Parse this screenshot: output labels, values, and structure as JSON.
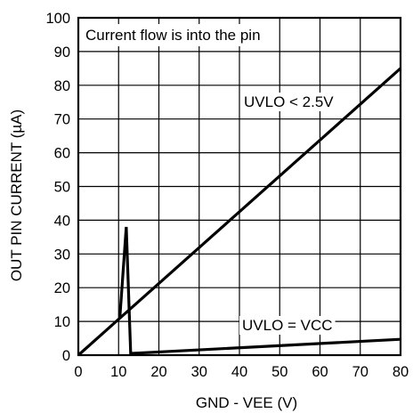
{
  "chart_data": {
    "type": "line",
    "xlabel": "GND - VEE (V)",
    "ylabel": "OUT PIN CURRENT (µA)",
    "xlim": [
      0,
      80
    ],
    "ylim": [
      0,
      100
    ],
    "x_ticks": [
      0,
      10,
      20,
      30,
      40,
      50,
      60,
      70,
      80
    ],
    "y_ticks": [
      0,
      10,
      20,
      30,
      40,
      50,
      60,
      70,
      80,
      90,
      100
    ],
    "grid": true,
    "annotations": [
      "Current flow is into the pin"
    ],
    "series": [
      {
        "name": "UVLO < 2.5V",
        "x": [
          0,
          80
        ],
        "y": [
          0,
          85
        ]
      },
      {
        "name": "UVLO = VCC",
        "x": [
          10.3,
          11.9,
          13.0,
          80
        ],
        "y": [
          11,
          38,
          0.5,
          4.7
        ]
      }
    ]
  }
}
